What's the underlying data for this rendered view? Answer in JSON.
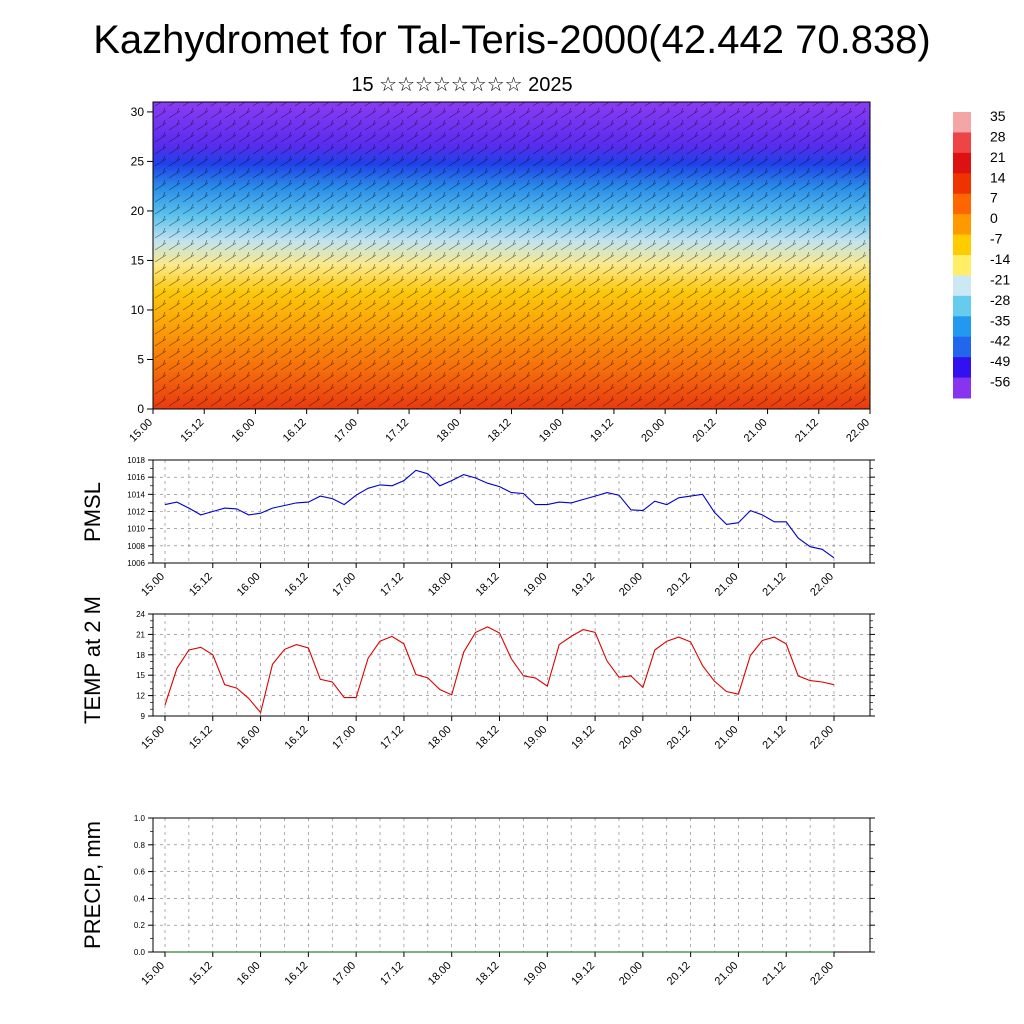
{
  "title": "Kazhydromet for Tal-Teris-2000(42.442 70.838)",
  "subtitle": "15 ☆☆☆☆☆☆☆☆ 2025",
  "time_labels": [
    "15.00",
    "15.12",
    "16.00",
    "16.12",
    "17.00",
    "17.12",
    "18.00",
    "18.12",
    "19.00",
    "19.12",
    "20.00",
    "20.12",
    "21.00",
    "21.12",
    "22.00"
  ],
  "chart_data": [
    {
      "type": "heatmap",
      "title": "",
      "xlabel": "",
      "ylabel": "",
      "x_ticks": [
        "15.00",
        "15.12",
        "16.00",
        "16.12",
        "17.00",
        "17.12",
        "18.00",
        "18.12",
        "19.00",
        "19.12",
        "20.00",
        "20.12",
        "21.00",
        "21.12",
        "22.00"
      ],
      "y_ticks": [
        0,
        5,
        10,
        15,
        20,
        25,
        30
      ],
      "ylim": [
        0,
        31
      ],
      "colorbar_labels": [
        "35",
        "28",
        "21",
        "14",
        "7",
        "0",
        "-7",
        "-14",
        "-21",
        "-28",
        "-35",
        "-42",
        "-49",
        "-56"
      ],
      "colorbar_colors": [
        "#f4a6a6",
        "#ee4444",
        "#dd1111",
        "#ee3300",
        "#ff6600",
        "#ff9900",
        "#ffcc00",
        "#ffee66",
        "#cce8f5",
        "#66ccee",
        "#2299ee",
        "#2266ee",
        "#3311ee",
        "#8833ee"
      ],
      "wind_barbs": true
    },
    {
      "type": "line",
      "title": "",
      "xlabel": "",
      "ylabel": "PMSL",
      "ylim": [
        1006,
        1018
      ],
      "y_ticks": [
        1006,
        1008,
        1010,
        1012,
        1014,
        1016,
        1018
      ],
      "x_ticks": [
        "15.00",
        "15.12",
        "16.00",
        "16.12",
        "17.00",
        "17.12",
        "18.00",
        "18.12",
        "19.00",
        "19.12",
        "20.00",
        "20.12",
        "21.00",
        "21.12",
        "22.00"
      ],
      "grid": true,
      "color": "#0000cc",
      "values": [
        1012.8,
        1013.1,
        1012.4,
        1011.6,
        1012.0,
        1012.4,
        1012.3,
        1011.6,
        1011.8,
        1012.4,
        1012.7,
        1013.0,
        1013.1,
        1013.8,
        1013.5,
        1012.8,
        1013.9,
        1014.7,
        1015.1,
        1015.0,
        1015.6,
        1016.8,
        1016.4,
        1015.0,
        1015.6,
        1016.3,
        1015.9,
        1015.3,
        1014.9,
        1014.2,
        1014.1,
        1012.8,
        1012.8,
        1013.1,
        1013.0,
        1013.4,
        1013.8,
        1014.2,
        1013.9,
        1012.2,
        1012.1,
        1013.2,
        1012.8,
        1013.6,
        1013.8,
        1014.0,
        1011.9,
        1010.5,
        1010.7,
        1012.1,
        1011.6,
        1010.8,
        1010.8,
        1008.9,
        1007.9,
        1007.6,
        1006.6
      ]
    },
    {
      "type": "line",
      "title": "",
      "xlabel": "",
      "ylabel": "TEMP at 2 M",
      "ylim": [
        9,
        24
      ],
      "y_ticks": [
        9,
        12,
        15,
        18,
        21,
        24
      ],
      "x_ticks": [
        "15.00",
        "15.12",
        "16.00",
        "16.12",
        "17.00",
        "17.12",
        "18.00",
        "18.12",
        "19.00",
        "19.12",
        "20.00",
        "20.12",
        "21.00",
        "21.12",
        "22.00"
      ],
      "grid": true,
      "color": "#dd0000",
      "values": [
        10.6,
        16.0,
        18.7,
        19.1,
        18.0,
        13.6,
        13.1,
        11.6,
        9.5,
        16.6,
        18.8,
        19.5,
        19.0,
        14.4,
        14.0,
        11.7,
        11.7,
        17.5,
        20.0,
        20.7,
        19.6,
        15.1,
        14.6,
        12.9,
        12.1,
        18.4,
        21.3,
        22.1,
        21.2,
        17.4,
        14.9,
        14.6,
        13.4,
        19.5,
        20.7,
        21.7,
        21.3,
        17.1,
        14.7,
        14.9,
        13.2,
        18.7,
        20.0,
        20.6,
        19.9,
        16.4,
        14.1,
        12.6,
        12.2,
        17.9,
        20.1,
        20.6,
        19.6,
        14.9,
        14.2,
        14.0,
        13.6
      ]
    },
    {
      "type": "line",
      "title": "",
      "xlabel": "",
      "ylabel": "PRECIP, mm",
      "ylim": [
        0,
        1
      ],
      "y_ticks": [
        "0.0",
        "0.2",
        "0.4",
        "0.6",
        "0.8",
        "1.0"
      ],
      "x_ticks": [
        "15.00",
        "15.12",
        "16.00",
        "16.12",
        "17.00",
        "17.12",
        "18.00",
        "18.12",
        "19.00",
        "19.12",
        "20.00",
        "20.12",
        "21.00",
        "21.12",
        "22.00"
      ],
      "grid": true,
      "color": "#006600",
      "values": [
        0,
        0,
        0,
        0,
        0,
        0,
        0,
        0,
        0,
        0,
        0,
        0,
        0,
        0,
        0,
        0,
        0,
        0,
        0,
        0,
        0,
        0,
        0,
        0,
        0,
        0,
        0,
        0,
        0,
        0,
        0,
        0,
        0,
        0,
        0,
        0,
        0,
        0,
        0,
        0,
        0,
        0,
        0,
        0,
        0,
        0,
        0,
        0,
        0,
        0,
        0,
        0,
        0,
        0,
        0,
        0,
        0
      ]
    }
  ]
}
